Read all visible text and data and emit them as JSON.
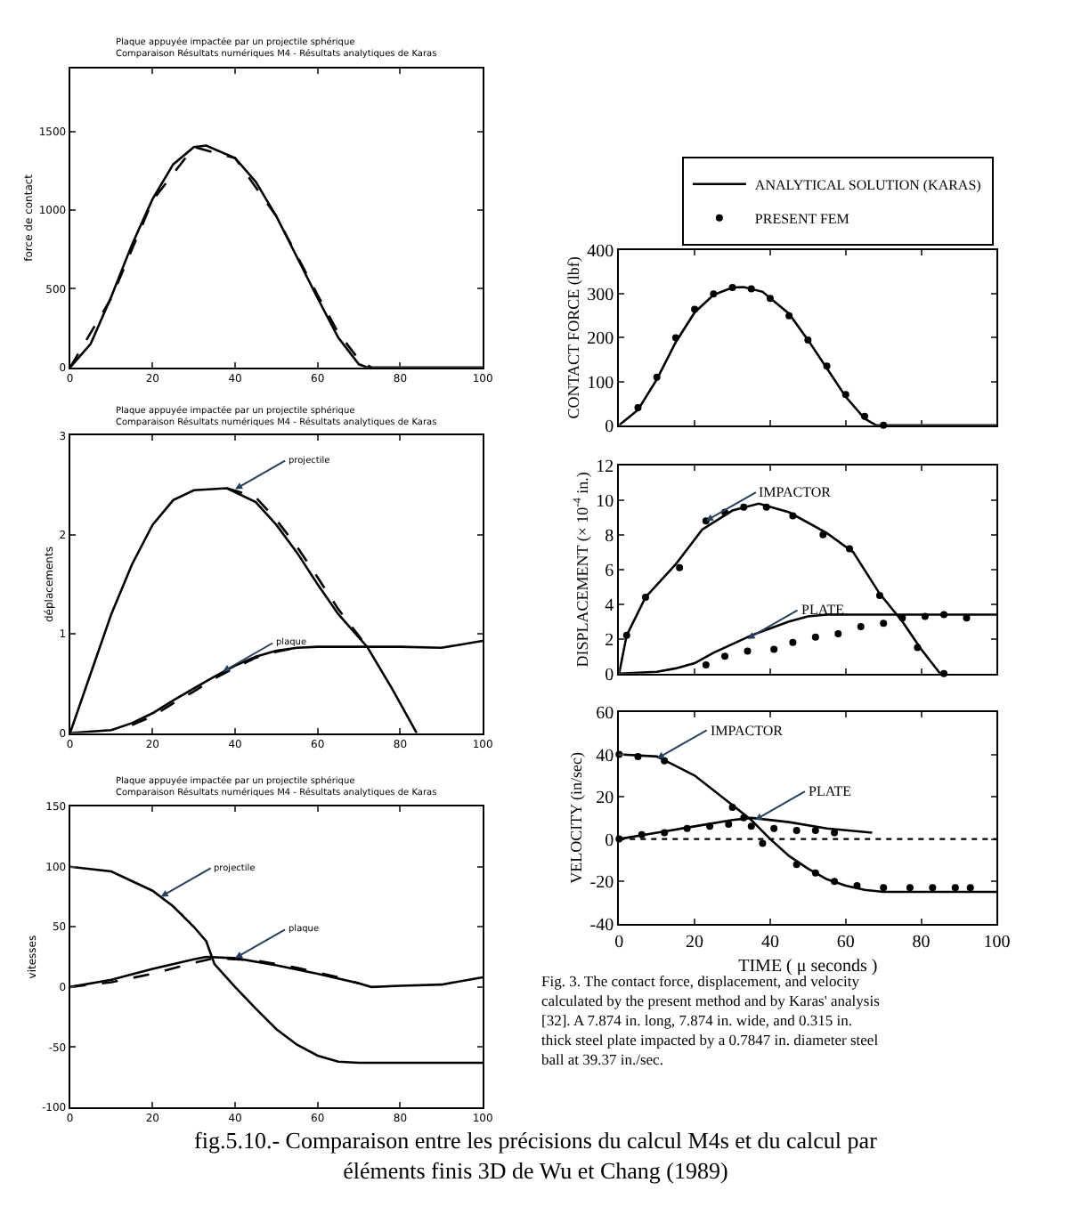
{
  "chart_data": [
    {
      "type": "line",
      "title": "Plaque appuyée impactée par un projectile sphérique",
      "subtitle": "Comparaison Résultats numériques M4 - Résultats analytiques de Karas",
      "ylabel": "force de contact",
      "xlim": [
        0,
        100
      ],
      "xticks": [
        0,
        20,
        40,
        60,
        80,
        100
      ],
      "ylim": [
        0,
        1900
      ],
      "yticks": [
        0,
        500,
        1000,
        1500
      ],
      "legend": false,
      "series": [
        {
          "color": "#000000",
          "line_style": "solid",
          "x": [
            0,
            5,
            10,
            15,
            20,
            25,
            30,
            33,
            40,
            45,
            50,
            55,
            60,
            65,
            70,
            72,
            80,
            90,
            100
          ],
          "values": [
            0,
            150,
            450,
            780,
            1070,
            1290,
            1400,
            1410,
            1330,
            1180,
            960,
            700,
            440,
            190,
            20,
            0,
            0,
            0,
            0
          ]
        },
        {
          "color": "#000000",
          "line_style": "dashed",
          "x": [
            0,
            10,
            20,
            30,
            40,
            50,
            60,
            65,
            70,
            73
          ],
          "values": [
            0,
            440,
            1060,
            1400,
            1330,
            960,
            460,
            220,
            50,
            0
          ]
        }
      ]
    },
    {
      "type": "line",
      "title": "Plaque appuyée impactée par un projectile sphérique",
      "subtitle": "Comparaison Résultats numériques M4 - Résultats analytiques de Karas",
      "ylabel": "déplacements",
      "xlim": [
        0,
        100
      ],
      "xticks": [
        0,
        20,
        40,
        60,
        80,
        100
      ],
      "ylim": [
        0,
        3
      ],
      "yticks": [
        0,
        1,
        2,
        3
      ],
      "legend": false,
      "annotations": [
        {
          "text": "projectile",
          "x": 40,
          "y": 2.46
        },
        {
          "text": "plaque",
          "x": 37,
          "y": 0.62
        }
      ],
      "series": [
        {
          "color": "#000000",
          "line_style": "solid",
          "x": [
            0,
            5,
            10,
            15,
            20,
            25,
            30,
            38,
            45,
            50,
            55,
            60,
            65,
            72,
            78,
            84
          ],
          "values": [
            0,
            0.6,
            1.2,
            1.7,
            2.1,
            2.35,
            2.45,
            2.47,
            2.33,
            2.1,
            1.82,
            1.5,
            1.2,
            0.87,
            0.45,
            0
          ]
        },
        {
          "color": "#000000",
          "line_style": "dashed",
          "x": [
            38,
            45,
            50,
            55,
            60,
            65,
            72
          ],
          "values": [
            2.47,
            2.38,
            2.15,
            1.88,
            1.57,
            1.25,
            0.87
          ]
        },
        {
          "color": "#000000",
          "line_style": "solid",
          "x": [
            0,
            10,
            15,
            20,
            25,
            30,
            35,
            40,
            45,
            50,
            55,
            60,
            70,
            80,
            90,
            100
          ],
          "values": [
            0,
            0.03,
            0.1,
            0.2,
            0.33,
            0.45,
            0.57,
            0.68,
            0.77,
            0.83,
            0.86,
            0.87,
            0.87,
            0.87,
            0.86,
            0.93
          ]
        },
        {
          "color": "#000000",
          "line_style": "dashed",
          "x": [
            15,
            20,
            25,
            30,
            35,
            40,
            45,
            50,
            55
          ],
          "values": [
            0.08,
            0.17,
            0.3,
            0.42,
            0.55,
            0.66,
            0.76,
            0.82,
            0.86
          ]
        }
      ]
    },
    {
      "type": "line",
      "title": "Plaque appuyée impactée par un projectile sphérique",
      "subtitle": "Comparaison Résultats numériques M4 - Résultats analytiques de Karas",
      "ylabel": "vitesses",
      "xlim": [
        0,
        100
      ],
      "xticks": [
        0,
        20,
        40,
        60,
        80,
        100
      ],
      "ylim": [
        -100,
        150
      ],
      "yticks": [
        -100,
        -50,
        0,
        50,
        100,
        150
      ],
      "legend": false,
      "annotations": [
        {
          "text": "projectile",
          "x": 22,
          "y": 75
        },
        {
          "text": "plaque",
          "x": 40,
          "y": 24
        }
      ],
      "series": [
        {
          "color": "#000000",
          "line_style": "solid",
          "x": [
            0,
            10,
            20,
            25,
            30,
            33,
            35,
            40,
            45,
            50,
            55,
            60,
            65,
            70,
            100
          ],
          "values": [
            100,
            96,
            80,
            67,
            50,
            38,
            19,
            0,
            -18,
            -35,
            -48,
            -57,
            -62,
            -63,
            -63
          ]
        },
        {
          "color": "#000000",
          "line_style": "solid",
          "x": [
            0,
            10,
            20,
            30,
            33,
            40,
            50,
            60,
            70,
            73,
            80,
            90,
            100
          ],
          "values": [
            0,
            6,
            15,
            23,
            25,
            24,
            18,
            11,
            3,
            0,
            1,
            2,
            8
          ]
        },
        {
          "color": "#000000",
          "line_style": "dashed",
          "x": [
            0,
            10,
            20,
            30,
            35,
            45,
            55,
            65,
            70
          ],
          "values": [
            0,
            4,
            11,
            20,
            24,
            22,
            16,
            8,
            3
          ]
        }
      ]
    },
    {
      "type": "line",
      "ylabel": "CONTACT FORCE (lbf)",
      "xlim": [
        0,
        100
      ],
      "xticks": [
        0,
        20,
        40,
        60,
        80,
        100
      ],
      "ylim": [
        0,
        400
      ],
      "yticks": [
        0,
        100,
        200,
        300,
        400
      ],
      "tick_labels": "y",
      "legend": "top right",
      "series": [
        {
          "name": "ANALYTICAL SOLUTION (KARAS)",
          "color": "#000000",
          "line_style": "solid",
          "x": [
            0,
            5,
            10,
            15,
            20,
            25,
            30,
            33,
            38,
            45,
            50,
            55,
            60,
            65,
            68,
            70,
            100
          ],
          "values": [
            0,
            35,
            105,
            190,
            258,
            298,
            315,
            316,
            305,
            255,
            195,
            130,
            65,
            15,
            0,
            0,
            0
          ]
        },
        {
          "name": "PRESENT FEM",
          "type": "scatter",
          "marker": "circle",
          "color": "#000000",
          "x": [
            5,
            10,
            15,
            20,
            25,
            30,
            35,
            40,
            45,
            50,
            55,
            60,
            65,
            70
          ],
          "values": [
            40,
            110,
            200,
            265,
            300,
            315,
            312,
            290,
            250,
            195,
            135,
            70,
            20,
            0
          ]
        }
      ]
    },
    {
      "type": "line",
      "ylabel": "DISPLACEMENT (× 10$^{-4}$ in.)",
      "xlim": [
        0,
        100
      ],
      "xticks": [
        0,
        20,
        40,
        60,
        80,
        100
      ],
      "ylim": [
        0,
        12
      ],
      "yticks": [
        0,
        2,
        4,
        6,
        8,
        10,
        12
      ],
      "tick_labels": "y",
      "legend": false,
      "annotations": [
        {
          "text": "IMPACTOR",
          "x": 23,
          "y": 8.8
        },
        {
          "text": "PLATE",
          "x": 34,
          "y": 2.0
        }
      ],
      "series": [
        {
          "color": "#000000",
          "line_style": "solid",
          "x": [
            0,
            2,
            7,
            15,
            22,
            30,
            37,
            45,
            55,
            62,
            69,
            75,
            80,
            85
          ],
          "values": [
            0,
            2.2,
            4.4,
            6.3,
            8.3,
            9.4,
            9.8,
            9.3,
            8.1,
            7.0,
            4.6,
            3.0,
            1.4,
            0
          ]
        },
        {
          "type": "scatter",
          "marker": "circle",
          "color": "#000000",
          "x": [
            2,
            7,
            16,
            23,
            28,
            33,
            39,
            46,
            54,
            61,
            69,
            79,
            86
          ],
          "values": [
            2.2,
            4.4,
            6.1,
            8.8,
            9.3,
            9.6,
            9.6,
            9.1,
            8.0,
            7.2,
            4.5,
            1.5,
            0
          ]
        },
        {
          "color": "#000000",
          "line_style": "solid",
          "x": [
            0,
            10,
            15,
            20,
            25,
            30,
            35,
            40,
            45,
            50,
            55,
            63,
            100
          ],
          "values": [
            0,
            0.1,
            0.3,
            0.6,
            1.2,
            1.7,
            2.2,
            2.6,
            3.0,
            3.3,
            3.4,
            3.4,
            3.4
          ]
        },
        {
          "type": "scatter",
          "marker": "circle",
          "color": "#000000",
          "x": [
            23,
            28,
            34,
            41,
            46,
            52,
            58,
            64,
            70,
            75,
            81,
            86,
            92
          ],
          "values": [
            0.5,
            1.0,
            1.3,
            1.4,
            1.8,
            2.1,
            2.3,
            2.7,
            2.9,
            3.2,
            3.3,
            3.4,
            3.2
          ]
        }
      ]
    },
    {
      "type": "line",
      "ylabel": "VELOCITY (in/sec)",
      "xlabel": "TIME ( μ seconds )",
      "xlim": [
        0,
        100
      ],
      "xticks": [
        0,
        20,
        40,
        60,
        80,
        100
      ],
      "ylim": [
        -40,
        60
      ],
      "yticks": [
        -40,
        -20,
        0,
        20,
        40,
        60
      ],
      "legend": false,
      "ref_lines": [
        {
          "axis": "y",
          "value": 0,
          "color": "#000000",
          "line_style": "dotted"
        }
      ],
      "annotations": [
        {
          "text": "IMPACTOR",
          "x": 10,
          "y": 38
        },
        {
          "text": "PLATE",
          "x": 36,
          "y": 9
        },
        "Fig. 3. The contact force, displacement, and velocity calculated by the present method and by Karas' analysis [32]. A 7.874 in. long, 7.874 in. wide, and 0.315 in. thick steel plate impacted by a 0.7847 in. diameter steel ball at 39.37 in./sec.",
        "fig.5.10.- Comparaison entre les précisions du calcul M4s et du calcul par éléments finis 3D de Wu et Chang (1989)"
      ],
      "series": [
        {
          "color": "#000000",
          "line_style": "solid",
          "x": [
            0,
            10,
            20,
            30,
            35,
            40,
            45,
            50,
            55,
            60,
            65,
            70,
            100
          ],
          "values": [
            40,
            39,
            30,
            16,
            9,
            0,
            -8,
            -14,
            -19,
            -22,
            -24,
            -25,
            -25
          ]
        },
        {
          "type": "scatter",
          "marker": "circle",
          "color": "#000000",
          "x": [
            0,
            5,
            12,
            30,
            33,
            38,
            47,
            52,
            57,
            63,
            70,
            77,
            83,
            89,
            93
          ],
          "values": [
            40,
            39,
            37,
            15,
            10,
            -2,
            -12,
            -16,
            -20,
            -22,
            -23,
            -23,
            -23,
            -23,
            -23
          ]
        },
        {
          "color": "#000000",
          "line_style": "solid",
          "x": [
            0,
            10,
            20,
            30,
            35,
            45,
            55,
            67
          ],
          "values": [
            0,
            3,
            6,
            9,
            10,
            8,
            5,
            3
          ]
        },
        {
          "type": "scatter",
          "marker": "circle",
          "color": "#000000",
          "x": [
            0,
            6,
            12,
            18,
            24,
            29,
            35,
            41,
            47,
            52,
            57
          ],
          "values": [
            0,
            2,
            3,
            5,
            6,
            7,
            6,
            5,
            4,
            4,
            3
          ]
        }
      ]
    }
  ]
}
